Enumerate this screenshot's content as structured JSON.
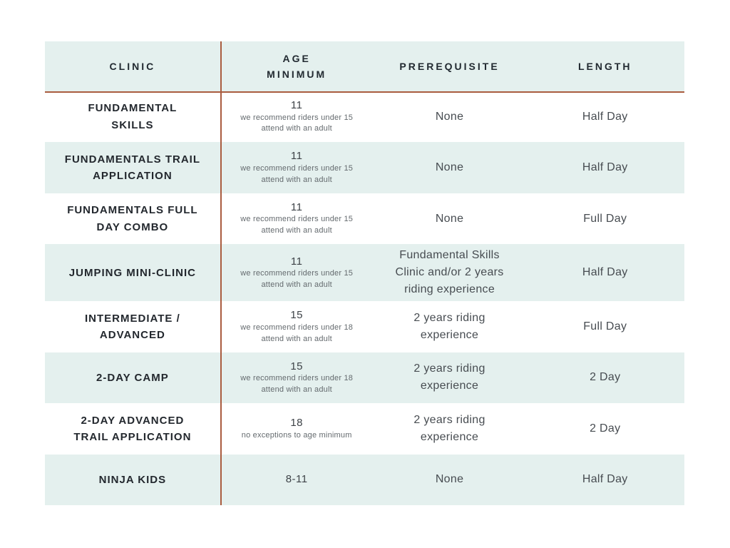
{
  "page": {
    "background": "#ffffff"
  },
  "colors": {
    "accent_line": "#aa5c3f",
    "row_teal": "#e4f0ee",
    "header_text": "#222a31",
    "clinic_text": "#23282e",
    "body_text": "#474c51",
    "note_text": "#646a6e"
  },
  "table": {
    "columns": [
      {
        "id": "clinic",
        "label_lines": [
          "CLINIC"
        ]
      },
      {
        "id": "age",
        "label_lines": [
          "AGE",
          "MINIMUM"
        ]
      },
      {
        "id": "prereq",
        "label_lines": [
          "PREREQUISITE"
        ]
      },
      {
        "id": "length",
        "label_lines": [
          "LENGTH"
        ]
      }
    ],
    "rows": [
      {
        "clinic_lines": [
          "FUNDAMENTAL",
          "SKILLS"
        ],
        "age": "11",
        "age_note_lines": [
          "we recommend riders under 15",
          "attend with an adult"
        ],
        "prereq_lines": [
          "None"
        ],
        "length": "Half Day"
      },
      {
        "clinic_lines": [
          "FUNDAMENTALS TRAIL",
          "APPLICATION"
        ],
        "age": "11",
        "age_note_lines": [
          "we recommend riders under 15",
          "attend with an adult"
        ],
        "prereq_lines": [
          "None"
        ],
        "length": "Half Day"
      },
      {
        "clinic_lines": [
          "FUNDAMENTALS FULL",
          "DAY COMBO"
        ],
        "age": "11",
        "age_note_lines": [
          "we recommend riders under 15",
          "attend with an adult"
        ],
        "prereq_lines": [
          "None"
        ],
        "length": "Full Day"
      },
      {
        "clinic_lines": [
          "JUMPING MINI-CLINIC"
        ],
        "age": "11",
        "age_note_lines": [
          "we recommend riders under 15",
          "attend with an adult"
        ],
        "prereq_lines": [
          "Fundamental Skills",
          "Clinic and/or 2 years",
          "riding experience"
        ],
        "length": "Half Day"
      },
      {
        "clinic_lines": [
          "INTERMEDIATE /",
          "ADVANCED"
        ],
        "age": "15",
        "age_note_lines": [
          "we recommend riders under 18",
          "attend with an adult"
        ],
        "prereq_lines": [
          "2 years riding",
          "experience"
        ],
        "length": "Full Day"
      },
      {
        "clinic_lines": [
          "2-DAY CAMP"
        ],
        "age": "15",
        "age_note_lines": [
          "we recommend riders under 18",
          "attend with an adult"
        ],
        "prereq_lines": [
          "2 years riding",
          "experience"
        ],
        "length": "2 Day"
      },
      {
        "clinic_lines": [
          "2-DAY ADVANCED",
          "TRAIL APPLICATION"
        ],
        "age": "18",
        "age_note_lines": [
          "no exceptions to age minimum"
        ],
        "prereq_lines": [
          "2 years riding",
          "experience"
        ],
        "length": "2 Day"
      },
      {
        "clinic_lines": [
          "NINJA KIDS"
        ],
        "age": "8-11",
        "age_note_lines": [],
        "prereq_lines": [
          "None"
        ],
        "length": "Half Day"
      }
    ]
  }
}
